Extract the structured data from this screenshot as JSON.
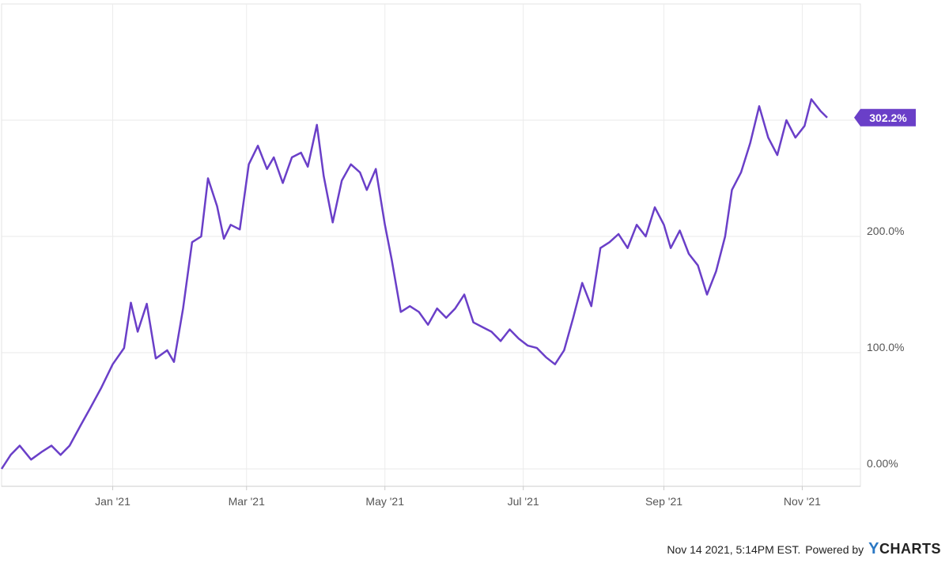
{
  "chart_data": {
    "type": "line",
    "title": "",
    "xlabel": "",
    "ylabel": "",
    "x_ticks": [
      "Jan '21",
      "Mar '21",
      "May '21",
      "Jul '21",
      "Sep '21",
      "Nov '21"
    ],
    "y_ticks": [
      "0.00%",
      "100.0%",
      "200.0%"
    ],
    "ylim": [
      -15,
      400
    ],
    "grid": true,
    "colors": {
      "line": "#6a3fc8",
      "label_bg": "#6a3fc8",
      "grid": "#e6e6e6",
      "axis": "#cccccc"
    },
    "series": [
      {
        "name": "",
        "last_value_label": "302.2%",
        "x": [
          "2020-11-13",
          "2020-11-17",
          "2020-11-21",
          "2020-11-26",
          "2020-12-01",
          "2020-12-05",
          "2020-12-09",
          "2020-12-13",
          "2020-12-18",
          "2020-12-22",
          "2020-12-27",
          "2021-01-01",
          "2021-01-06",
          "2021-01-09",
          "2021-01-12",
          "2021-01-16",
          "2021-01-20",
          "2021-01-25",
          "2021-01-28",
          "2021-02-01",
          "2021-02-05",
          "2021-02-09",
          "2021-02-12",
          "2021-02-16",
          "2021-02-19",
          "2021-02-22",
          "2021-02-26",
          "2021-03-02",
          "2021-03-06",
          "2021-03-10",
          "2021-03-13",
          "2021-03-17",
          "2021-03-21",
          "2021-03-25",
          "2021-03-28",
          "2021-04-01",
          "2021-04-04",
          "2021-04-08",
          "2021-04-12",
          "2021-04-16",
          "2021-04-20",
          "2021-04-23",
          "2021-04-27",
          "2021-05-01",
          "2021-05-04",
          "2021-05-08",
          "2021-05-12",
          "2021-05-16",
          "2021-05-20",
          "2021-05-24",
          "2021-05-28",
          "2021-06-01",
          "2021-06-05",
          "2021-06-09",
          "2021-06-13",
          "2021-06-17",
          "2021-06-21",
          "2021-06-25",
          "2021-06-29",
          "2021-07-03",
          "2021-07-07",
          "2021-07-11",
          "2021-07-15",
          "2021-07-19",
          "2021-07-23",
          "2021-07-27",
          "2021-07-31",
          "2021-08-04",
          "2021-08-08",
          "2021-08-12",
          "2021-08-16",
          "2021-08-20",
          "2021-08-24",
          "2021-08-28",
          "2021-09-01",
          "2021-09-04",
          "2021-09-08",
          "2021-09-12",
          "2021-09-16",
          "2021-09-20",
          "2021-09-24",
          "2021-09-28",
          "2021-10-01",
          "2021-10-05",
          "2021-10-09",
          "2021-10-13",
          "2021-10-17",
          "2021-10-21",
          "2021-10-25",
          "2021-10-29",
          "2021-11-02",
          "2021-11-05",
          "2021-11-09",
          "2021-11-12"
        ],
        "values": [
          0,
          12,
          20,
          8,
          15,
          20,
          12,
          20,
          38,
          52,
          70,
          90,
          104,
          143,
          118,
          142,
          95,
          102,
          92,
          138,
          195,
          200,
          250,
          226,
          198,
          210,
          206,
          262,
          278,
          258,
          268,
          246,
          268,
          272,
          260,
          296,
          252,
          212,
          248,
          262,
          255,
          240,
          258,
          210,
          180,
          135,
          140,
          135,
          124,
          138,
          130,
          138,
          150,
          126,
          122,
          118,
          110,
          120,
          112,
          106,
          104,
          96,
          90,
          102,
          130,
          160,
          140,
          190,
          195,
          202,
          190,
          210,
          200,
          225,
          210,
          190,
          205,
          185,
          175,
          150,
          170,
          200,
          240,
          255,
          280,
          312,
          285,
          270,
          300,
          285,
          295,
          318,
          308,
          302.2
        ]
      }
    ]
  },
  "footer": {
    "timestamp": "Nov 14 2021, 5:14PM EST.",
    "powered_by": "Powered by",
    "brand": "CHARTS",
    "brand_y": "Y"
  }
}
